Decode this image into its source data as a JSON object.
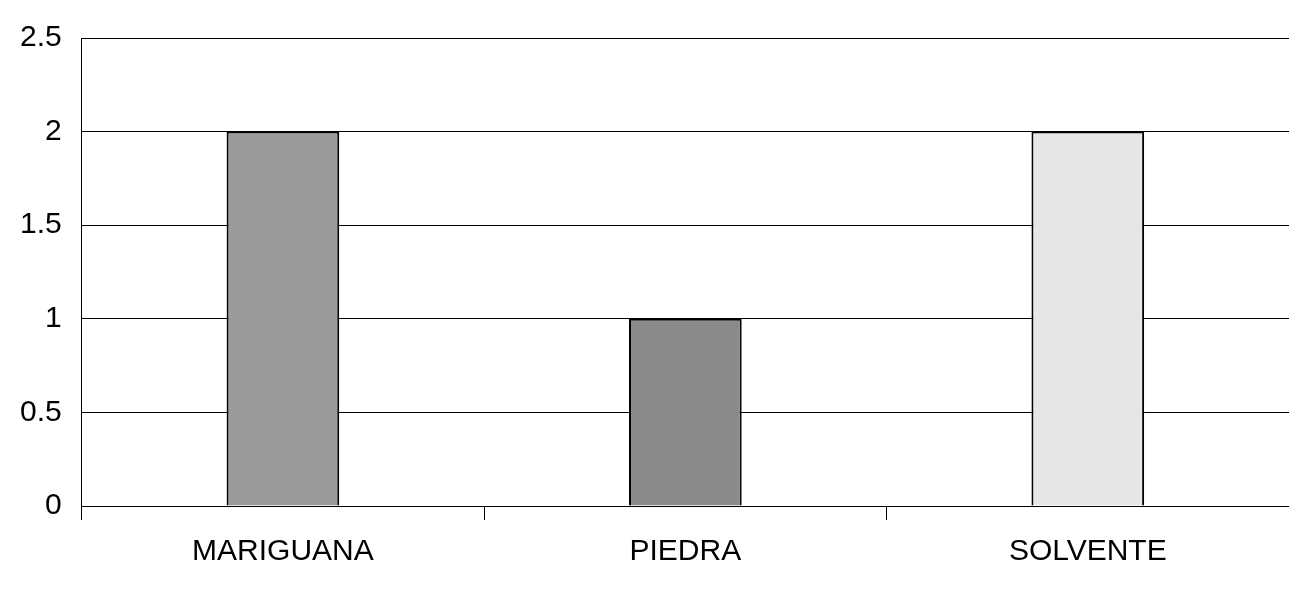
{
  "chart_data": {
    "type": "bar",
    "categories": [
      "MARIGUANA",
      "PIEDRA",
      "SOLVENTE"
    ],
    "values": [
      2,
      1,
      2
    ],
    "colors": [
      "#9a9a9a",
      "#8a8a8a",
      "#e6e6e6"
    ],
    "ylim": [
      0,
      2.5
    ],
    "yticks": [
      0,
      0.5,
      1,
      1.5,
      2,
      2.5
    ],
    "grid": "y",
    "legend": false
  }
}
